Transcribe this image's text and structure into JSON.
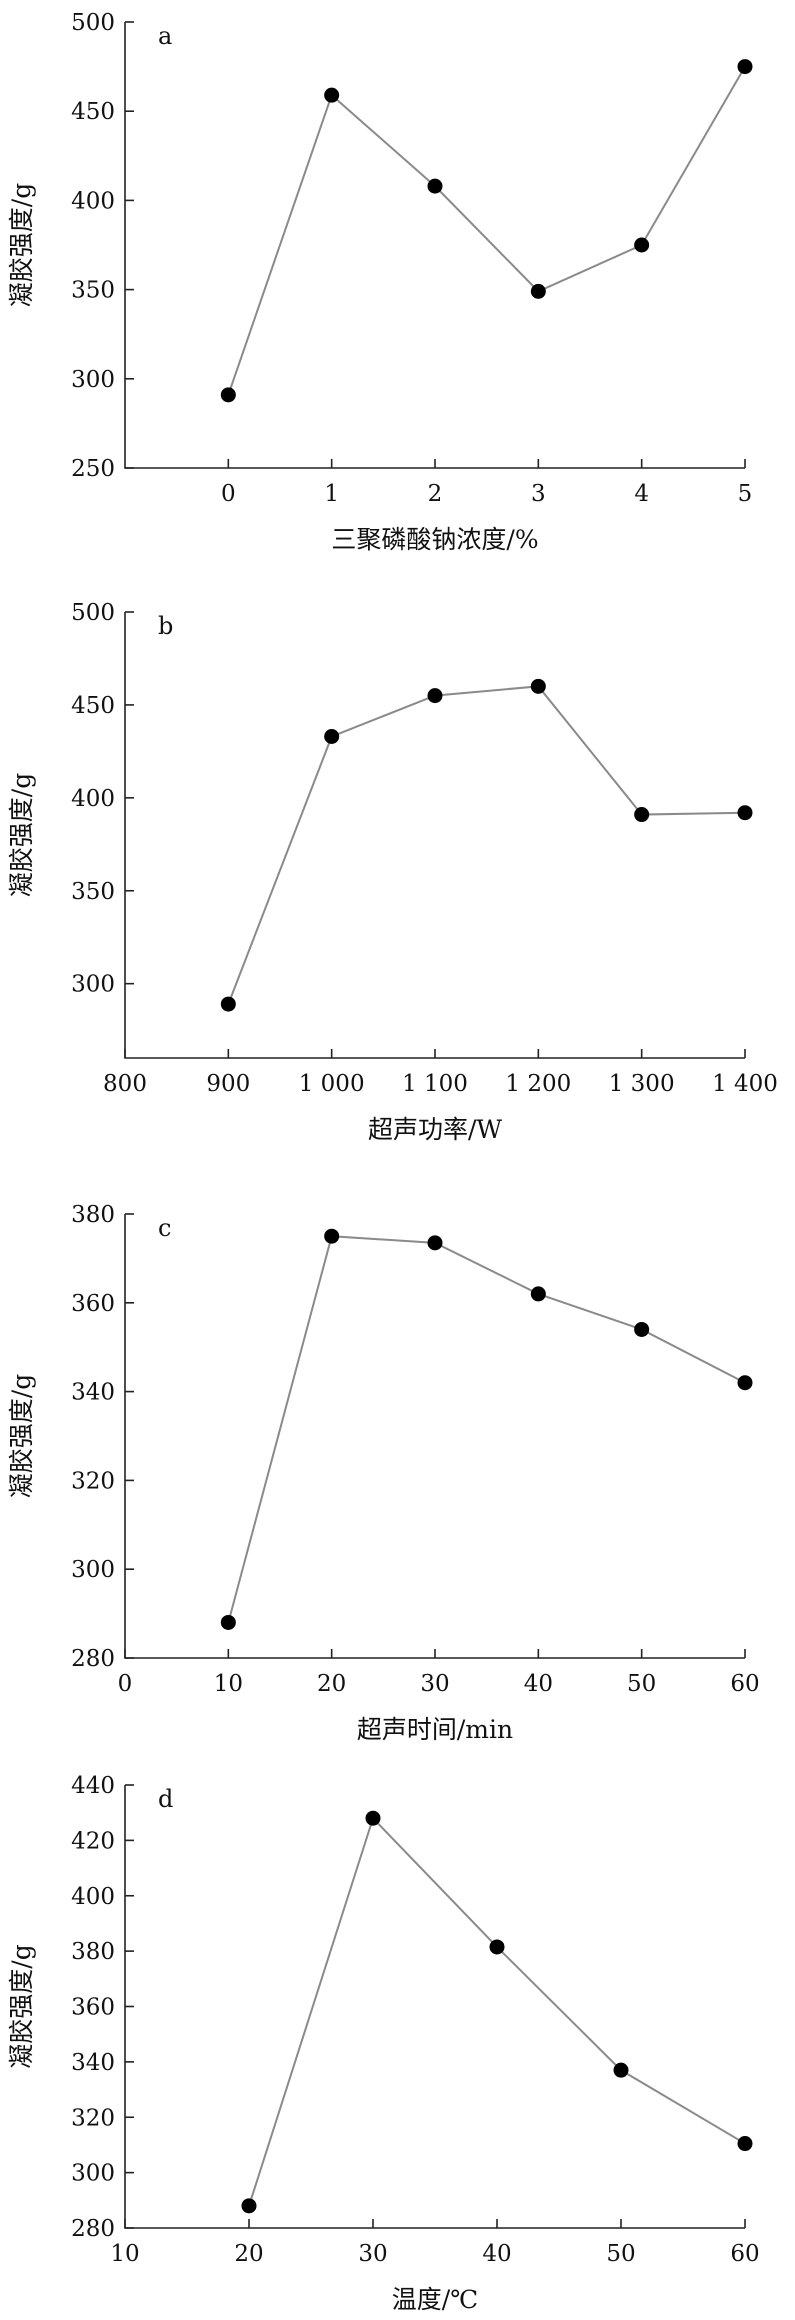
{
  "chart_data": [
    {
      "type": "line",
      "label": "a",
      "xlabel": "三聚磷酸钠浓度/%",
      "ylabel": "凝胶强度/g",
      "xlim": [
        -1,
        5
      ],
      "ylim": [
        250,
        500
      ],
      "xticks": [
        0,
        1,
        2,
        3,
        4,
        5
      ],
      "xtick_labels": [
        "0",
        "1",
        "2",
        "3",
        "4",
        "5"
      ],
      "yticks": [
        250,
        300,
        350,
        400,
        450,
        500
      ],
      "ytick_labels": [
        "250",
        "300",
        "350",
        "400",
        "450",
        "500"
      ],
      "x": [
        0,
        1,
        2,
        3,
        4,
        5
      ],
      "y": [
        291,
        459,
        408,
        349,
        375,
        475
      ]
    },
    {
      "type": "line",
      "label": "b",
      "xlabel": "超声功率/W",
      "ylabel": "凝胶强度/g",
      "xlim": [
        800,
        1400
      ],
      "ylim": [
        260,
        500
      ],
      "xticks": [
        800,
        900,
        1000,
        1100,
        1200,
        1300,
        1400
      ],
      "xtick_labels": [
        "800",
        "900",
        "1 000",
        "1 100",
        "1 200",
        "1 300",
        "1 400"
      ],
      "yticks": [
        300,
        350,
        400,
        450,
        500
      ],
      "ytick_labels": [
        "300",
        "350",
        "400",
        "450",
        "500"
      ],
      "x": [
        900,
        1000,
        1100,
        1200,
        1300,
        1400
      ],
      "y": [
        289,
        433,
        455,
        460,
        391,
        392
      ]
    },
    {
      "type": "line",
      "label": "c",
      "xlabel": "超声时间/min",
      "ylabel": "凝胶强度/g",
      "xlim": [
        0,
        60
      ],
      "ylim": [
        280,
        380
      ],
      "xticks": [
        0,
        10,
        20,
        30,
        40,
        50,
        60
      ],
      "xtick_labels": [
        "0",
        "10",
        "20",
        "30",
        "40",
        "50",
        "60"
      ],
      "yticks": [
        280,
        300,
        320,
        340,
        360,
        380
      ],
      "ytick_labels": [
        "280",
        "300",
        "320",
        "340",
        "360",
        "380"
      ],
      "x": [
        10,
        20,
        30,
        40,
        50,
        60
      ],
      "y": [
        288,
        375,
        373.5,
        362,
        354,
        342
      ]
    },
    {
      "type": "line",
      "label": "d",
      "xlabel": "温度/℃",
      "ylabel": "凝胶强度/g",
      "xlim": [
        10,
        60
      ],
      "ylim": [
        280,
        440
      ],
      "xticks": [
        10,
        20,
        30,
        40,
        50,
        60
      ],
      "xtick_labels": [
        "10",
        "20",
        "30",
        "40",
        "50",
        "60"
      ],
      "yticks": [
        280,
        300,
        320,
        340,
        360,
        380,
        400,
        420,
        440
      ],
      "ytick_labels": [
        "280",
        "300",
        "320",
        "340",
        "360",
        "380",
        "400",
        "420",
        "440"
      ],
      "x": [
        20,
        30,
        40,
        50,
        60
      ],
      "y": [
        288,
        428,
        381.5,
        337,
        310.5
      ]
    }
  ]
}
